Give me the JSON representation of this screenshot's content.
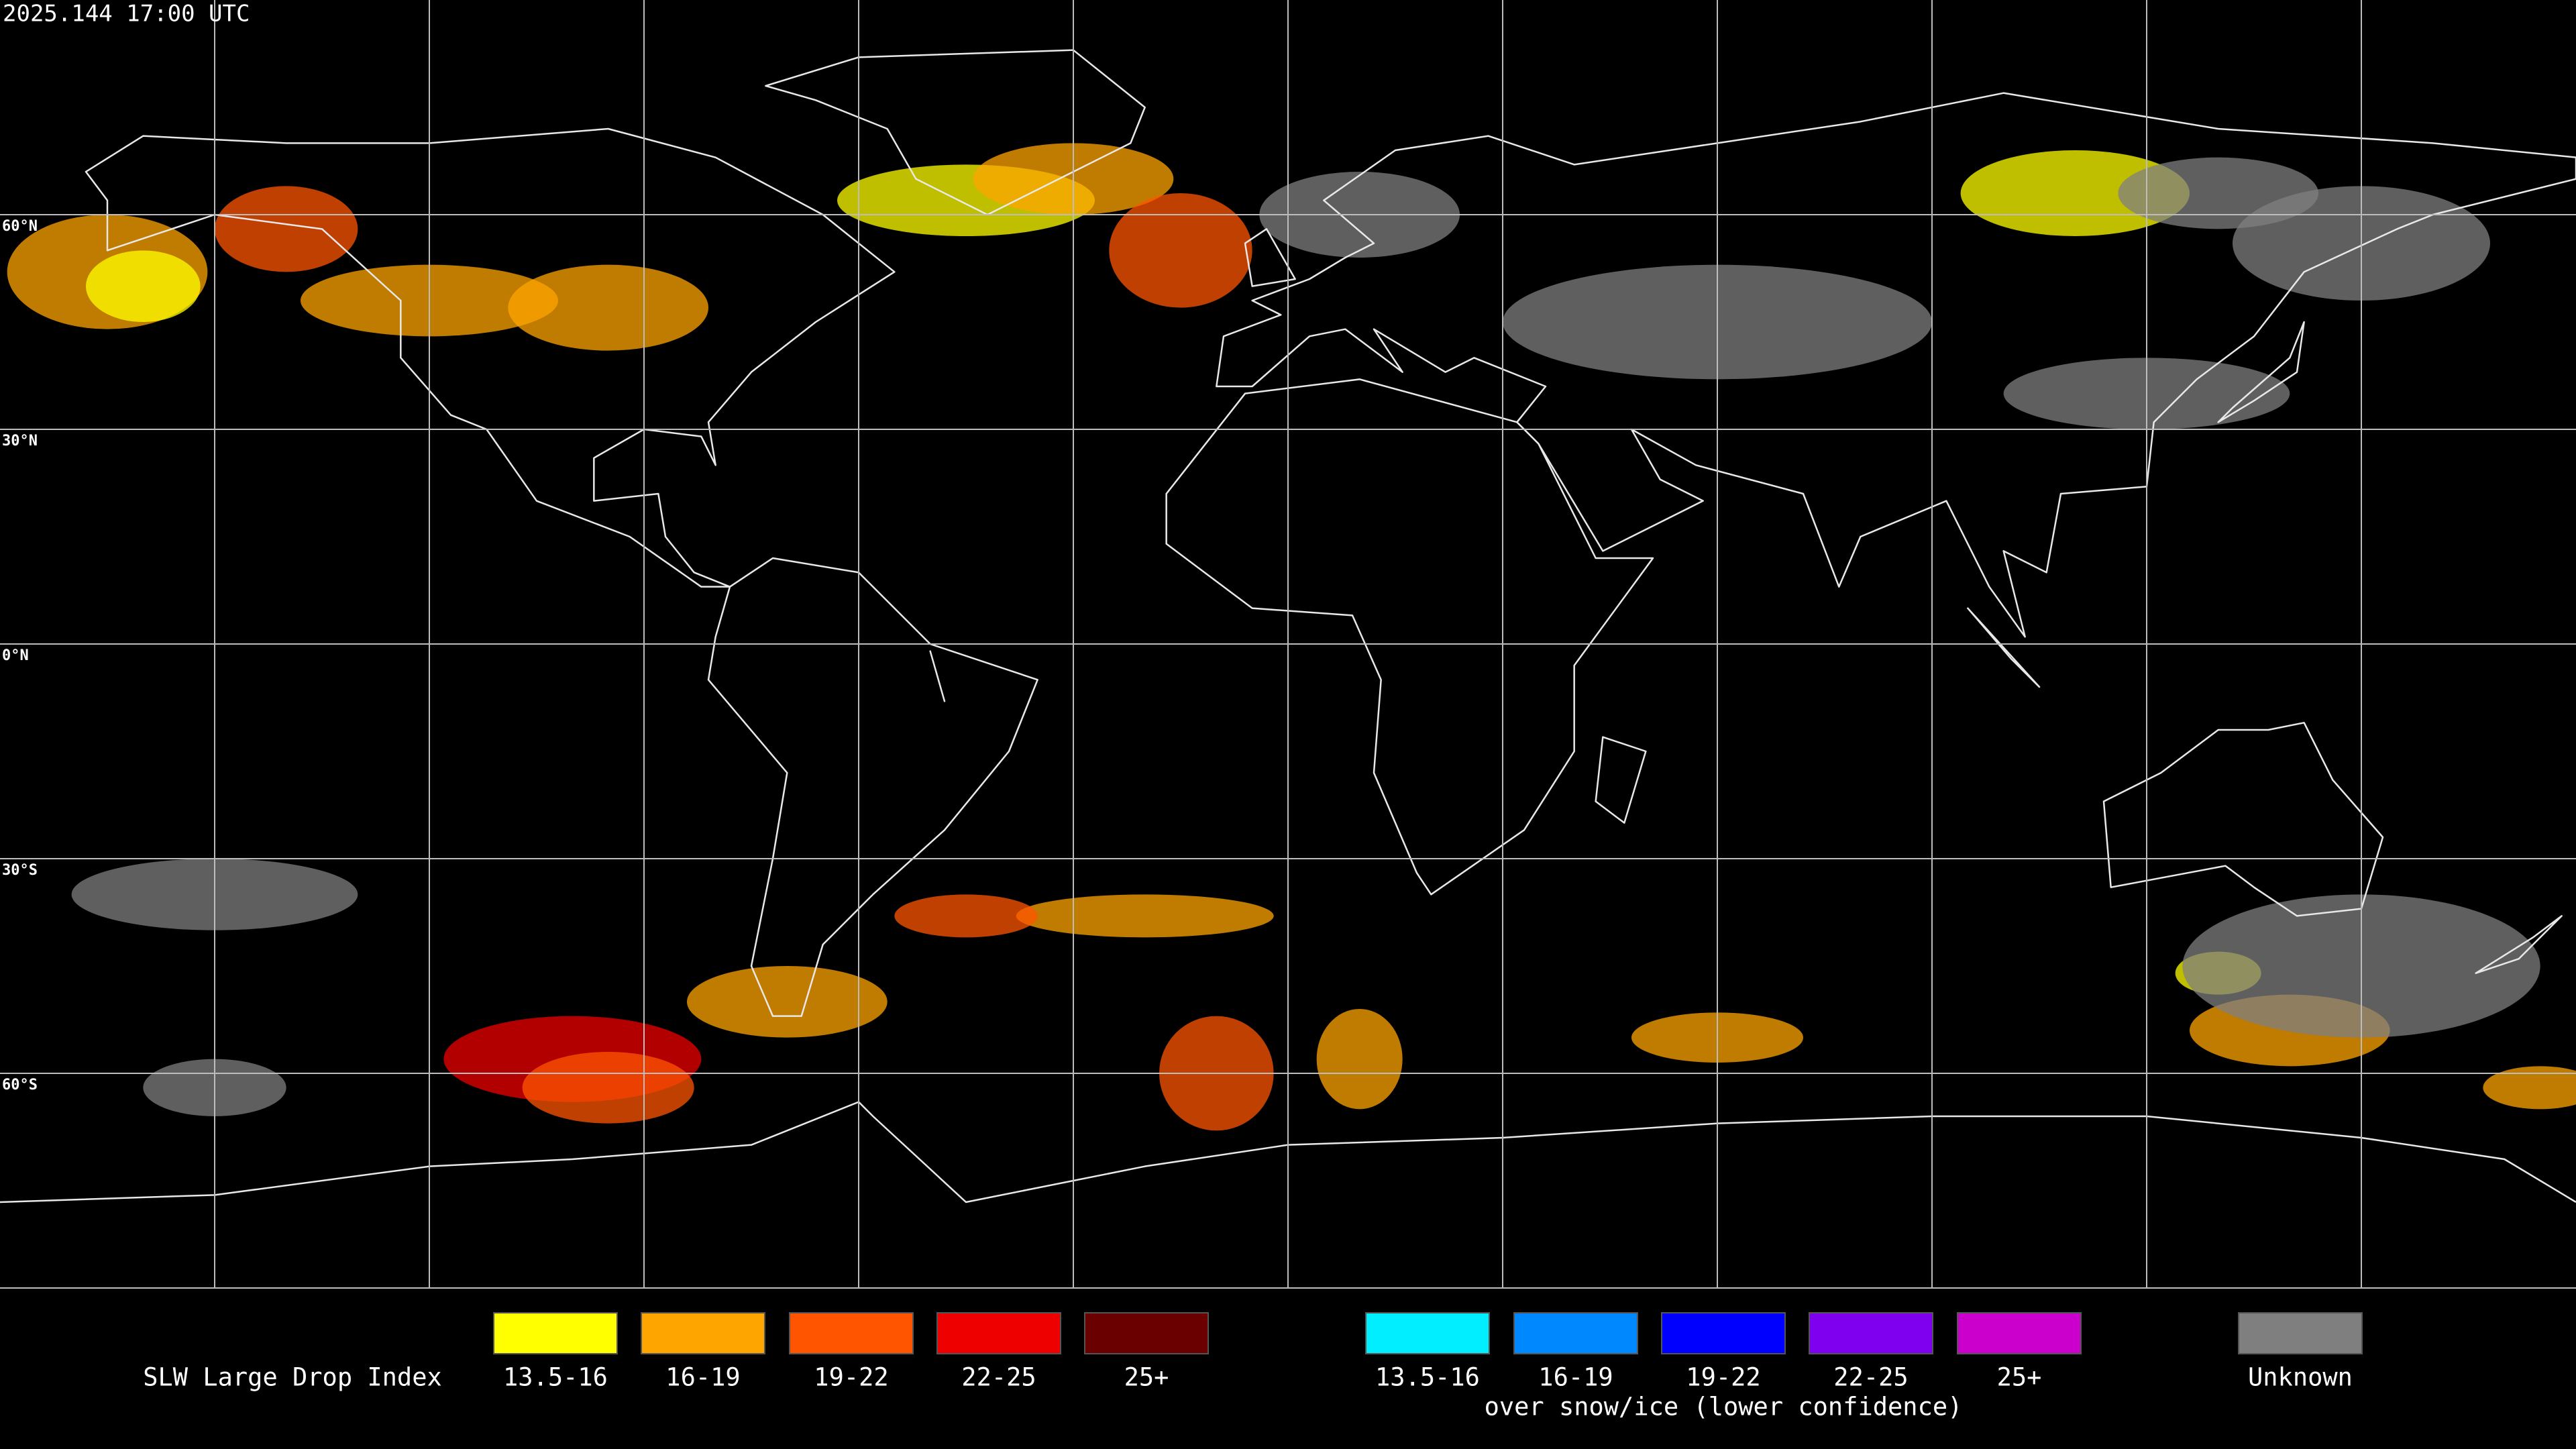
{
  "header": {
    "title": "2025.144 17:00 UTC"
  },
  "map": {
    "lat_labels": [
      "60°N",
      "30°N",
      "0°N",
      "30°S",
      "60°S"
    ]
  },
  "legend": {
    "title": "SLW Large Drop Index",
    "groups": [
      {
        "items": [
          {
            "label": "13.5-16",
            "color": "#ffff00"
          },
          {
            "label": "16-19",
            "color": "#ffa500"
          },
          {
            "label": "19-22",
            "color": "#ff5500"
          },
          {
            "label": "22-25",
            "color": "#ee0000"
          },
          {
            "label": "25+",
            "color": "#6b0000"
          }
        ]
      },
      {
        "caption": "over snow/ice (lower confidence)",
        "items": [
          {
            "label": "13.5-16",
            "color": "#00eeff"
          },
          {
            "label": "16-19",
            "color": "#0088ff"
          },
          {
            "label": "19-22",
            "color": "#0000ff"
          },
          {
            "label": "22-25",
            "color": "#7f00ee"
          },
          {
            "label": "25+",
            "color": "#cc00cc"
          }
        ]
      },
      {
        "items": [
          {
            "label": "Unknown",
            "color": "#7f7f7f"
          }
        ]
      }
    ]
  }
}
